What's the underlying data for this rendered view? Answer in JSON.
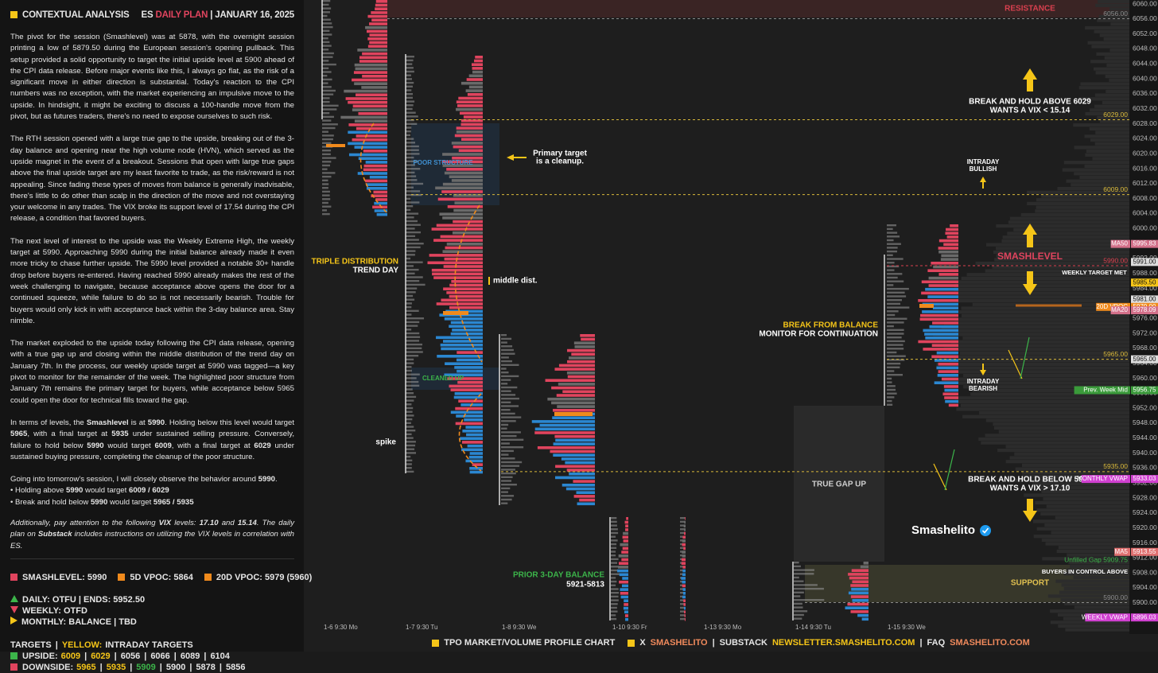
{
  "sidebar": {
    "title": "CONTEXTUAL ANALYSIS",
    "plan": {
      "symbol": "ES",
      "name": "DAILY PLAN",
      "sep": "|",
      "date": "JANUARY 16, 2025"
    },
    "paragraphs": [
      [
        "The pivot for the session (Smashlevel) was at 5878, with the overnight session printing a low of 5879.50 during the European session's opening pullback. This setup provided a solid opportunity to target the initial upside level at 5900 ahead of the CPI data release. Before major events like this, I always go flat, as the risk of a significant move in either direction is substantial. Today's reaction to the CPI numbers was no exception, with the market experiencing an impulsive move to the upside. In hindsight, it might be exciting to discuss a 100-handle move from the pivot, but as futures traders, there's no need to expose ourselves to such risk."
      ],
      [
        "The RTH session opened with a large true gap to the upside, breaking out of the 3-day balance and opening near the high volume node (HVN), which served as the upside magnet in the event of a breakout. Sessions that open with large true gaps above the final upside target are my least favorite to trade, as the risk/reward is not appealing. Since fading these types of moves from balance is generally inadvisable, there's little to do other than scalp in the direction of the move and not overstaying your welcome in any trades. The VIX broke its support level of 17.54 during the CPI release, a condition that favored buyers."
      ],
      [
        "The next level of interest to the upside was the Weekly Extreme High, the weekly target at 5990. Approaching 5990 during the initial balance already made it even more tricky to chase further upside. The 5990 level provided a notable 30+ handle drop before buyers re-entered. Having reached 5990 already makes the rest of the week challenging to navigate, because acceptance above opens the door for a continued squeeze, while failure to do so is not necessarily bearish. Trouble for buyers would only kick in with acceptance back within the 3-day balance area. Stay nimble."
      ],
      [
        "The market exploded to the upside today following the CPI data release, opening with a true gap up and closing within the middle distribution of the trend day on January 7th. In the process, our weekly upside target at 5990 was tagged—a key pivot to monitor for the remainder of the week. The highlighted poor structure from January 7th remains the primary target for buyers, while acceptance below 5965 could open the door for technical fills toward the gap."
      ],
      [
        "In terms of levels, the ",
        "Smashlevel",
        " is at ",
        "5990",
        ". Holding below this level would target ",
        "5965",
        ", with a final target at ",
        "5935",
        " under sustained selling pressure. Conversely, failure to hold below ",
        "5990",
        " would target ",
        "6009",
        ", with a final target at ",
        "6029",
        " under sustained buying pressure, completing the cleanup of the poor structure."
      ]
    ],
    "plan_lines": [
      [
        "Going into tomorrow's session, I will closely observe the behavior around ",
        "5990",
        "."
      ],
      [
        "• Holding above ",
        "5990",
        " would target ",
        "6009 / 6029"
      ],
      [
        "• Break and hold below ",
        "5990",
        " would target ",
        "5965 / 5935"
      ]
    ],
    "note": [
      "Additionally, pay attention to the following ",
      "VIX",
      " levels: ",
      "17.10",
      " and ",
      "15.14",
      ". The daily plan on ",
      "Substack",
      " includes instructions on utilizing the VIX levels in correlation with ES."
    ],
    "levels": [
      {
        "text": "SMASHLEVEL: 5990",
        "color": "#e0445e"
      },
      {
        "text": "5D VPOC: 5864",
        "color": "#f08a1c"
      },
      {
        "text": "20D VPOC: 5979 (5960)",
        "color": "#f08a1c"
      }
    ],
    "status": [
      {
        "text": "DAILY: OTFU | ENDS: 5952.50",
        "dir": "up",
        "color": "#3cb54a"
      },
      {
        "text": "WEEKLY: OTFD",
        "dir": "down",
        "color": "#e0445e"
      },
      {
        "text": "MONTHLY: BALANCE | TBD",
        "dir": "right",
        "color": "#f5c518"
      }
    ],
    "targets": {
      "title": "TARGETS",
      "sep": "|",
      "legend_key": "YELLOW:",
      "legend": "INTRADAY TARGETS",
      "rows": [
        {
          "label": "UPSIDE:",
          "color": "#3cb54a",
          "items": [
            {
              "text": "6009",
              "color": "#f5c518"
            },
            {
              "text": "6029",
              "color": "#f5c518"
            },
            {
              "text": "6056",
              "color": "#e6e6e6"
            },
            {
              "text": "6066",
              "color": "#e6e6e6"
            },
            {
              "text": "6089",
              "color": "#e6e6e6"
            },
            {
              "text": "6104",
              "color": "#e6e6e6"
            }
          ]
        },
        {
          "label": "DOWNSIDE:",
          "color": "#e0445e",
          "items": [
            {
              "text": "5965",
              "color": "#f5c518"
            },
            {
              "text": "5935",
              "color": "#f5c518"
            },
            {
              "text": "5909",
              "color": "#3cb54a"
            },
            {
              "text": "5900",
              "color": "#e6e6e6"
            },
            {
              "text": "5878",
              "color": "#e6e6e6"
            },
            {
              "text": "5856",
              "color": "#e6e6e6"
            }
          ]
        }
      ]
    }
  },
  "chart": {
    "price_axis": [
      "6060.00",
      "6056.00",
      "6052.00",
      "6048.00",
      "6044.00",
      "6040.00",
      "6036.00",
      "6032.00",
      "6028.00",
      "6024.00",
      "6020.00",
      "6016.00",
      "6012.00",
      "6008.00",
      "6004.00",
      "6000.00",
      "5996.00",
      "5992.00",
      "5988.00",
      "5984.00",
      "5980.00",
      "5976.00",
      "5972.00",
      "5968.00",
      "5964.00",
      "5960.00",
      "5956.00",
      "5952.00",
      "5948.00",
      "5944.00",
      "5940.00",
      "5936.00",
      "5932.00",
      "5928.00",
      "5924.00",
      "5920.00",
      "5916.00",
      "5912.00",
      "5908.00",
      "5904.00",
      "5900.00",
      "5896.00"
    ],
    "time_axis": [
      "1-6  9:30 Mo",
      "1-7  9:30 Tu",
      "1-8  9:30 We",
      "1-10  9:30 Fr",
      "1-13  9:30 Mo",
      "1-14  9:30 Tu",
      "1-15  9:30 We"
    ],
    "level_lines": [
      {
        "label": "6056.00",
        "color": "#8a8a8a",
        "from": 487
      },
      {
        "label": "6029.00",
        "color": "#d9b93a",
        "from": 517
      },
      {
        "label": "6009.00",
        "color": "#d9b93a",
        "from": 517
      },
      {
        "label": "5990.00",
        "color": "#d9404f",
        "from": 1115
      },
      {
        "label": "5965.00",
        "color": "#d9b93a",
        "from": 1115
      },
      {
        "label": "5935.00",
        "color": "#d9b93a",
        "from": 630
      },
      {
        "label": "5900.00",
        "color": "#8a8a8a",
        "from": 1012
      }
    ],
    "tags": [
      {
        "name": "MA50",
        "price": "5995.83",
        "color": "#d4708a"
      },
      {
        "price": "5991.00",
        "color": "#dddddd"
      },
      {
        "price": "5985.50",
        "color": "#f5c518"
      },
      {
        "price": "5981.00",
        "color": "#dddddd"
      },
      {
        "name": "20D VPOC",
        "price": "5979.00",
        "color": "#f08a1c"
      },
      {
        "name": "MA20",
        "price": "5978.09",
        "color": "#d4708a"
      },
      {
        "price": "5965.00",
        "color": "#dddddd"
      },
      {
        "name": "Prev. Week Mid",
        "price": "5956.75",
        "color": "#3a9a3a"
      },
      {
        "name": "MONTHLY VWAP",
        "price": "5933.03",
        "color": "#d040d0"
      },
      {
        "name": "MA5",
        "price": "5913.55",
        "color": "#e07070"
      },
      {
        "name": "WEEKLY VWAP",
        "price": "5896.03",
        "color": "#d040d0"
      }
    ],
    "annotations": {
      "resistance": "RESISTANCE",
      "break_above": [
        "BREAK AND HOLD ABOVE 6029",
        "WANTS A VIX < 15.14"
      ],
      "intraday_bullish": [
        "INTRADAY",
        "BULLISH"
      ],
      "poor_structure": "POOR STRUCTURE",
      "primary_target": [
        "Primary target",
        "is a cleanup."
      ],
      "triple": [
        "TRIPLE  DISTRIBUTION",
        "TREND DAY"
      ],
      "middle": "middle dist.",
      "cleaned": "CLEANED UP",
      "spike": "spike",
      "prior_balance": [
        "PRIOR 3-DAY BALANCE",
        "5921-5813"
      ],
      "true_gap": "TRUE GAP UP",
      "smashlevel": "SMASHLEVEL",
      "weekly_met": "WEEKLY TARGET MET",
      "break_balance": [
        "BREAK FROM BALANCE",
        "MONITOR FOR CONTINUATION"
      ],
      "intraday_bearish": [
        "INTRADAY",
        "BEARISH"
      ],
      "break_below": [
        "BREAK AND HOLD BELOW 5935",
        "WANTS A VIX > 17.10"
      ],
      "brand": "Smashelito",
      "unfilled_gap": "Unfilled Gap  5909.75",
      "buyers": "BUYERS IN CONTROL ABOVE",
      "support": "SUPPORT"
    }
  },
  "footer": {
    "chart": "TPO MARKET/VOLUME PROFILE CHART",
    "x": "X",
    "x_handle": "SMASHELITO",
    "sep": "|",
    "substack": "SUBSTACK",
    "substack_url": "NEWSLETTER.SMASHELITO.COM",
    "faq": "FAQ",
    "faq_url": "SMASHELITO.COM"
  }
}
